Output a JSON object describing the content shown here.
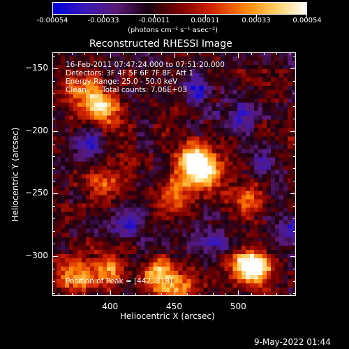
{
  "colorbar": {
    "tick_labels": [
      "-0.00054",
      "-0.00033",
      "-0.00011",
      "0.00011",
      "0.00033",
      "0.00054"
    ],
    "unit_label": "(photons cm⁻² s⁻¹ asec⁻²)",
    "colors": [
      "#0000e0",
      "#3a19b8",
      "#5a1a78",
      "#1a0010",
      "#7a0000",
      "#d22400",
      "#ff8000",
      "#ffd060",
      "#ffffff"
    ]
  },
  "chart_data": {
    "type": "heatmap",
    "title": "Reconstructed RHESSI Image",
    "xlabel": "Heliocentric X (arcsec)",
    "ylabel": "Heliocentric Y (arcsec)",
    "xlim": [
      355,
      545
    ],
    "ylim": [
      -332,
      -137
    ],
    "xticks": [
      400,
      450,
      500
    ],
    "yticks": [
      -150,
      -200,
      -250,
      -300
    ],
    "value_range": [
      -0.00054,
      0.00054
    ],
    "bright_regions": [
      {
        "x": 394,
        "y": -180,
        "level": 0.95
      },
      {
        "x": 375,
        "y": -168,
        "level": 0.6
      },
      {
        "x": 465,
        "y": -222,
        "level": 0.95
      },
      {
        "x": 472,
        "y": -233,
        "level": 0.9
      },
      {
        "x": 450,
        "y": -250,
        "level": 0.65
      },
      {
        "x": 395,
        "y": -245,
        "level": 0.5
      },
      {
        "x": 510,
        "y": -255,
        "level": 0.6
      },
      {
        "x": 375,
        "y": -318,
        "level": 0.8
      },
      {
        "x": 400,
        "y": -312,
        "level": 0.75
      },
      {
        "x": 438,
        "y": -315,
        "level": 0.85
      },
      {
        "x": 455,
        "y": -325,
        "level": 0.7
      },
      {
        "x": 505,
        "y": -305,
        "level": 0.55
      },
      {
        "x": 513,
        "y": -312,
        "level": 0.95
      }
    ],
    "dark_regions": [
      {
        "x": 382,
        "y": -210,
        "level": -0.55
      },
      {
        "x": 470,
        "y": -165,
        "level": -0.5
      },
      {
        "x": 500,
        "y": -190,
        "level": -0.45
      },
      {
        "x": 415,
        "y": -270,
        "level": -0.5
      },
      {
        "x": 520,
        "y": -225,
        "level": -0.4
      },
      {
        "x": 480,
        "y": -285,
        "level": -0.45
      },
      {
        "x": 540,
        "y": -280,
        "level": -0.5
      }
    ]
  },
  "annotations": {
    "line1": "16-Feb-2011 07:47:24.000 to 07:51:20.000",
    "line2": "Detectors: 3F 4F 5F 6F 7F 8F, Att 1",
    "line3": "Energy Range: 25.0 - 50.0 keV",
    "line4_method": "Clean",
    "line4_counts": "Total counts: 7.06E+03",
    "peak": "Position of Peak = [442, 318]"
  },
  "timestamp": "9-May-2022 01:44"
}
